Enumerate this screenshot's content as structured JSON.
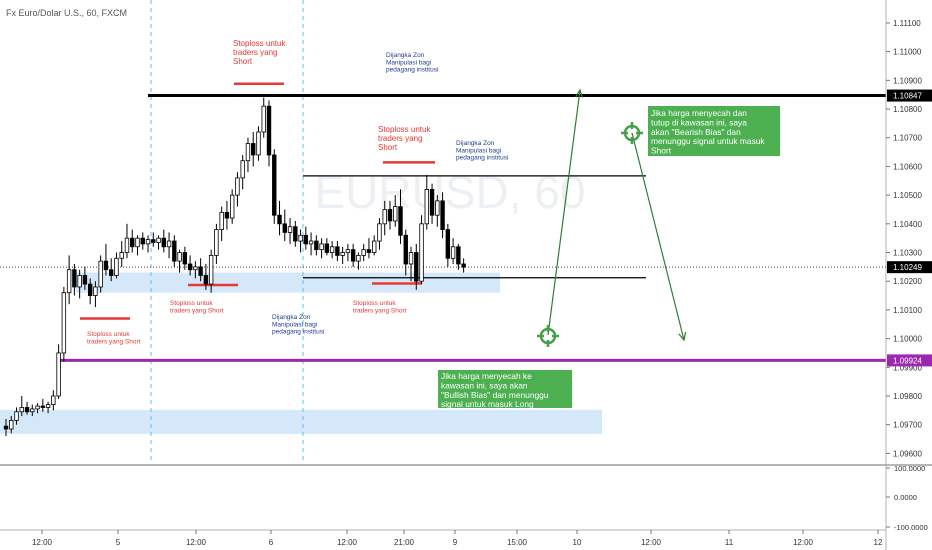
{
  "header": {
    "symbol_title": "Fx Euro/Dolar U.S., 60, FXCM"
  },
  "watermark": "EURUSD, 60",
  "price_axis": {
    "ticks": [
      "1.11100",
      "1.11000",
      "1.10900",
      "1.10800",
      "1.10700",
      "1.10600",
      "1.10500",
      "1.10400",
      "1.10300",
      "1.10200",
      "1.10100",
      "1.10000",
      "1.09900",
      "1.09800",
      "1.09700",
      "1.09600"
    ],
    "tick_values": [
      1.111,
      1.11,
      1.109,
      1.108,
      1.107,
      1.106,
      1.105,
      1.104,
      1.103,
      1.102,
      1.101,
      1.1,
      1.099,
      1.098,
      1.097,
      1.096
    ],
    "labels": [
      {
        "text": "1.10847",
        "value": 1.10847,
        "bg": "#000000",
        "fg": "#ffffff"
      },
      {
        "text": "1.10249",
        "value": 1.10249,
        "bg": "#000000",
        "fg": "#ffffff"
      },
      {
        "text": "1.09924",
        "value": 1.09924,
        "bg": "#9c27b0",
        "fg": "#ffffff"
      }
    ]
  },
  "indicator_axis": {
    "ticks": [
      "100.0000",
      "0.0000",
      "-100.0000"
    ]
  },
  "time_axis": {
    "ticks": [
      "12:00",
      "5",
      "12:00",
      "6",
      "12:00",
      "21:00",
      "9",
      "15:00",
      "10",
      "12:00",
      "11",
      "12:00",
      "12"
    ]
  },
  "chart_data": {
    "type": "candlestick",
    "title": "Fx Euro/Dolar U.S., 60, FXCM",
    "ylim": [
      1.0957,
      1.1118
    ],
    "colors": {
      "up": "#ffffff",
      "down": "#000000",
      "border": "#000000"
    },
    "x_index_range": [
      0,
      136
    ],
    "candles": [
      {
        "o": 1.09695,
        "h": 1.0972,
        "l": 1.0966,
        "c": 1.09685
      },
      {
        "o": 1.09685,
        "h": 1.0973,
        "l": 1.0967,
        "c": 1.09715
      },
      {
        "o": 1.09715,
        "h": 1.0976,
        "l": 1.097,
        "c": 1.09745
      },
      {
        "o": 1.09745,
        "h": 1.098,
        "l": 1.0973,
        "c": 1.0976
      },
      {
        "o": 1.0976,
        "h": 1.0978,
        "l": 1.09735,
        "c": 1.09745
      },
      {
        "o": 1.09745,
        "h": 1.0977,
        "l": 1.0973,
        "c": 1.09755
      },
      {
        "o": 1.09755,
        "h": 1.09775,
        "l": 1.0974,
        "c": 1.09765
      },
      {
        "o": 1.09765,
        "h": 1.0979,
        "l": 1.09745,
        "c": 1.0976
      },
      {
        "o": 1.0976,
        "h": 1.0978,
        "l": 1.0974,
        "c": 1.0977
      },
      {
        "o": 1.0977,
        "h": 1.0982,
        "l": 1.0975,
        "c": 1.098
      },
      {
        "o": 1.098,
        "h": 1.0998,
        "l": 1.0979,
        "c": 1.0995
      },
      {
        "o": 1.0995,
        "h": 1.1018,
        "l": 1.0992,
        "c": 1.1016
      },
      {
        "o": 1.1016,
        "h": 1.1029,
        "l": 1.1012,
        "c": 1.1024
      },
      {
        "o": 1.1024,
        "h": 1.1026,
        "l": 1.1015,
        "c": 1.1018
      },
      {
        "o": 1.1018,
        "h": 1.1024,
        "l": 1.1014,
        "c": 1.1022
      },
      {
        "o": 1.1022,
        "h": 1.1025,
        "l": 1.1017,
        "c": 1.1019
      },
      {
        "o": 1.1019,
        "h": 1.1021,
        "l": 1.1012,
        "c": 1.1015
      },
      {
        "o": 1.1015,
        "h": 1.102,
        "l": 1.1011,
        "c": 1.1018
      },
      {
        "o": 1.1018,
        "h": 1.1029,
        "l": 1.1016,
        "c": 1.1027
      },
      {
        "o": 1.1027,
        "h": 1.1033,
        "l": 1.1022,
        "c": 1.1024
      },
      {
        "o": 1.1024,
        "h": 1.1028,
        "l": 1.102,
        "c": 1.1022
      },
      {
        "o": 1.1022,
        "h": 1.103,
        "l": 1.1021,
        "c": 1.1028
      },
      {
        "o": 1.1028,
        "h": 1.1034,
        "l": 1.1025,
        "c": 1.103
      },
      {
        "o": 1.103,
        "h": 1.104,
        "l": 1.1028,
        "c": 1.1035
      },
      {
        "o": 1.1035,
        "h": 1.1038,
        "l": 1.103,
        "c": 1.1032
      },
      {
        "o": 1.1032,
        "h": 1.1036,
        "l": 1.1029,
        "c": 1.1035
      },
      {
        "o": 1.1035,
        "h": 1.1037,
        "l": 1.1031,
        "c": 1.1033
      },
      {
        "o": 1.1033,
        "h": 1.1036,
        "l": 1.103,
        "c": 1.10345
      },
      {
        "o": 1.10345,
        "h": 1.1037,
        "l": 1.1032,
        "c": 1.10335
      },
      {
        "o": 1.10335,
        "h": 1.1036,
        "l": 1.1031,
        "c": 1.1035
      },
      {
        "o": 1.1035,
        "h": 1.1038,
        "l": 1.103,
        "c": 1.1032
      },
      {
        "o": 1.1032,
        "h": 1.1037,
        "l": 1.1028,
        "c": 1.1034
      },
      {
        "o": 1.1034,
        "h": 1.1036,
        "l": 1.1025,
        "c": 1.1027
      },
      {
        "o": 1.1027,
        "h": 1.1031,
        "l": 1.1023,
        "c": 1.103
      },
      {
        "o": 1.103,
        "h": 1.1032,
        "l": 1.1024,
        "c": 1.1026
      },
      {
        "o": 1.1026,
        "h": 1.1029,
        "l": 1.1022,
        "c": 1.1024
      },
      {
        "o": 1.1024,
        "h": 1.1027,
        "l": 1.1021,
        "c": 1.1025
      },
      {
        "o": 1.1025,
        "h": 1.1028,
        "l": 1.102,
        "c": 1.1022
      },
      {
        "o": 1.1022,
        "h": 1.1026,
        "l": 1.1017,
        "c": 1.1019
      },
      {
        "o": 1.1019,
        "h": 1.1031,
        "l": 1.1016,
        "c": 1.1029
      },
      {
        "o": 1.1029,
        "h": 1.104,
        "l": 1.1026,
        "c": 1.1038
      },
      {
        "o": 1.1038,
        "h": 1.1046,
        "l": 1.1034,
        "c": 1.1044
      },
      {
        "o": 1.1044,
        "h": 1.1048,
        "l": 1.1038,
        "c": 1.1042
      },
      {
        "o": 1.1042,
        "h": 1.1052,
        "l": 1.104,
        "c": 1.105
      },
      {
        "o": 1.105,
        "h": 1.1058,
        "l": 1.1046,
        "c": 1.1056
      },
      {
        "o": 1.1056,
        "h": 1.1064,
        "l": 1.1052,
        "c": 1.1062
      },
      {
        "o": 1.1062,
        "h": 1.107,
        "l": 1.1058,
        "c": 1.1068
      },
      {
        "o": 1.1068,
        "h": 1.1072,
        "l": 1.106,
        "c": 1.1064
      },
      {
        "o": 1.1064,
        "h": 1.1074,
        "l": 1.1062,
        "c": 1.1072
      },
      {
        "o": 1.1072,
        "h": 1.1084,
        "l": 1.107,
        "c": 1.1081
      },
      {
        "o": 1.1081,
        "h": 1.1083,
        "l": 1.106,
        "c": 1.1064
      },
      {
        "o": 1.1064,
        "h": 1.1066,
        "l": 1.104,
        "c": 1.1043
      },
      {
        "o": 1.1043,
        "h": 1.1048,
        "l": 1.1036,
        "c": 1.104
      },
      {
        "o": 1.104,
        "h": 1.1045,
        "l": 1.1034,
        "c": 1.1037
      },
      {
        "o": 1.1037,
        "h": 1.1042,
        "l": 1.1033,
        "c": 1.1039
      },
      {
        "o": 1.1039,
        "h": 1.1041,
        "l": 1.1032,
        "c": 1.1034
      },
      {
        "o": 1.1034,
        "h": 1.1038,
        "l": 1.103,
        "c": 1.1036
      },
      {
        "o": 1.1036,
        "h": 1.1039,
        "l": 1.1031,
        "c": 1.1033
      },
      {
        "o": 1.1033,
        "h": 1.1037,
        "l": 1.1029,
        "c": 1.1034
      },
      {
        "o": 1.1034,
        "h": 1.1036,
        "l": 1.1029,
        "c": 1.1031
      },
      {
        "o": 1.1031,
        "h": 1.1035,
        "l": 1.1028,
        "c": 1.1033
      },
      {
        "o": 1.1033,
        "h": 1.1035,
        "l": 1.1029,
        "c": 1.103
      },
      {
        "o": 1.103,
        "h": 1.1034,
        "l": 1.1028,
        "c": 1.1032
      },
      {
        "o": 1.1032,
        "h": 1.1034,
        "l": 1.1027,
        "c": 1.1029
      },
      {
        "o": 1.1029,
        "h": 1.1032,
        "l": 1.1026,
        "c": 1.103
      },
      {
        "o": 1.103,
        "h": 1.1033,
        "l": 1.1027,
        "c": 1.1031
      },
      {
        "o": 1.1031,
        "h": 1.1033,
        "l": 1.1025,
        "c": 1.1027
      },
      {
        "o": 1.1027,
        "h": 1.103,
        "l": 1.1024,
        "c": 1.1029
      },
      {
        "o": 1.1029,
        "h": 1.1033,
        "l": 1.1027,
        "c": 1.1031
      },
      {
        "o": 1.1031,
        "h": 1.1035,
        "l": 1.1028,
        "c": 1.103
      },
      {
        "o": 1.103,
        "h": 1.1036,
        "l": 1.1029,
        "c": 1.1034
      },
      {
        "o": 1.1034,
        "h": 1.1042,
        "l": 1.1031,
        "c": 1.104
      },
      {
        "o": 1.104,
        "h": 1.1048,
        "l": 1.1036,
        "c": 1.1045
      },
      {
        "o": 1.1045,
        "h": 1.1048,
        "l": 1.1038,
        "c": 1.1041
      },
      {
        "o": 1.1041,
        "h": 1.105,
        "l": 1.1039,
        "c": 1.1046
      },
      {
        "o": 1.1046,
        "h": 1.1052,
        "l": 1.1033,
        "c": 1.1036
      },
      {
        "o": 1.1036,
        "h": 1.1038,
        "l": 1.1022,
        "c": 1.1026
      },
      {
        "o": 1.1026,
        "h": 1.1032,
        "l": 1.102,
        "c": 1.103
      },
      {
        "o": 1.103,
        "h": 1.1033,
        "l": 1.1017,
        "c": 1.102
      },
      {
        "o": 1.102,
        "h": 1.1043,
        "l": 1.1019,
        "c": 1.104
      },
      {
        "o": 1.104,
        "h": 1.1057,
        "l": 1.1038,
        "c": 1.1052
      },
      {
        "o": 1.1052,
        "h": 1.1054,
        "l": 1.104,
        "c": 1.1043
      },
      {
        "o": 1.1043,
        "h": 1.105,
        "l": 1.1039,
        "c": 1.1048
      },
      {
        "o": 1.1048,
        "h": 1.1051,
        "l": 1.1035,
        "c": 1.1038
      },
      {
        "o": 1.1038,
        "h": 1.104,
        "l": 1.1025,
        "c": 1.1028
      },
      {
        "o": 1.1028,
        "h": 1.1035,
        "l": 1.1026,
        "c": 1.1032
      },
      {
        "o": 1.1032,
        "h": 1.1033,
        "l": 1.1024,
        "c": 1.1026
      },
      {
        "o": 1.1026,
        "h": 1.1028,
        "l": 1.1023,
        "c": 1.10249
      }
    ]
  },
  "annotations": {
    "stoploss_short": "Stoploss untuk traders yang Short",
    "dijangka_zon": "Dijangka Zon Manipulasi bagi pedagang institusi",
    "bearish_box": "Jika harga menyecah dan tutup di kawasan ini, saya akan \"Bearish Bias\" dan menunggu signal untuk masuk Short",
    "bullish_box": "Jika harga menyecah ke kawasan ini, saya akan \"Bullish Bias\" dan menunggu signal untuk masuk Long"
  },
  "colors": {
    "zone_fill": "#d4e8fa",
    "stoploss_red": "#e53935",
    "note_blue": "#1e3e8c",
    "purple_line": "#9c27b0",
    "green_box": "#4caf50",
    "green_arrow": "#2e7d32"
  }
}
